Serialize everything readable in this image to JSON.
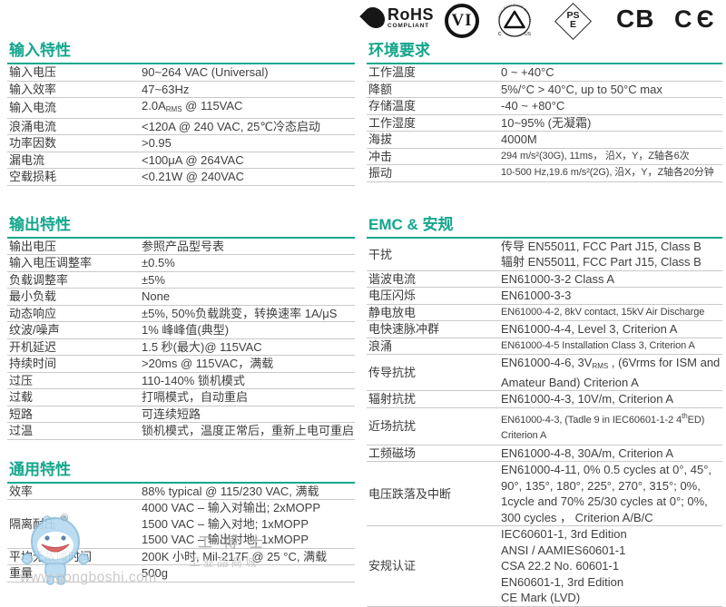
{
  "colors": {
    "accent": "#13a68c",
    "divider": "#c9c9c9",
    "text": "#3b3b3b",
    "logo_ink": "#1b1b1b",
    "watermark_blue": "#b5daf0"
  },
  "badges": {
    "rohs_line1": "RoHS",
    "rohs_line2": "COMPLIANT",
    "vi": "VI",
    "tuv_top": "TÜV Rheinland geprüft",
    "tuv_left": "c",
    "tuv_right": "US",
    "pse_line1": "PS",
    "pse_line2": "E",
    "cb": "CB",
    "ce": "CЄ"
  },
  "sections": {
    "input": {
      "title": "输入特性",
      "rows": [
        {
          "label": "输入电压",
          "value": [
            "90~264 VAC (Universal)"
          ]
        },
        {
          "label": "输入效率",
          "value": [
            "47~63Hz"
          ]
        },
        {
          "label": "输入电流",
          "value": [
            [
              "2.0A",
              {
                "sub": "RMS"
              },
              " @ 115VAC"
            ]
          ]
        },
        {
          "label": "浪涌电流",
          "value": [
            "<120A @ 240 VAC,  25℃冷态启动"
          ]
        },
        {
          "label": "功率因数",
          "value": [
            ">0.95"
          ]
        },
        {
          "label": "漏电流",
          "value": [
            "<100μA @ 264VAC"
          ]
        },
        {
          "label": "空载损耗",
          "value": [
            "<0.21W @ 240VAC"
          ]
        }
      ]
    },
    "output": {
      "title": "输出特性",
      "rows": [
        {
          "label": "输出电压",
          "value": [
            "参照产品型号表"
          ]
        },
        {
          "label": "输入电压调整率",
          "value": [
            "±0.5%"
          ]
        },
        {
          "label": "负载调整率",
          "value": [
            "±5%"
          ]
        },
        {
          "label": "最小负载",
          "value": [
            "None"
          ]
        },
        {
          "label": "动态响应",
          "value": [
            "±5%, 50%负载跳变，转换速率 1A/μS"
          ]
        },
        {
          "label": "纹波/噪声",
          "value": [
            "1% 峰峰值(典型)"
          ]
        },
        {
          "label": "开机延迟",
          "value": [
            "1.5 秒(最大)@ 115VAC"
          ]
        },
        {
          "label": "持续时间",
          "value": [
            ">20ms @ 115VAC，满载"
          ]
        },
        {
          "label": "过压",
          "value": [
            "110-140% 锁机模式"
          ]
        },
        {
          "label": "过载",
          "value": [
            "打嗝模式，自动重启"
          ]
        },
        {
          "label": "短路",
          "value": [
            "可连续短路"
          ]
        },
        {
          "label": "过温",
          "value": [
            "锁机模式，温度正常后，重新上电可重启"
          ]
        }
      ]
    },
    "general": {
      "title": "通用特性",
      "rows": [
        {
          "label": "效率",
          "value": [
            "88% typical @ 115/230 VAC, 满载"
          ]
        },
        {
          "label": "隔离耐压",
          "value": [
            "4000 VAC – 输入对输出; 2xMOPP",
            "1500 VAC – 输入对地; 1xMOPP",
            "1500 VAC – 输出对地; 1xMOPP"
          ]
        },
        {
          "label": "平均无故障时间",
          "value": [
            "200K 小时, Mil-217F @ 25 °C, 满载"
          ]
        },
        {
          "label": "重量",
          "value": [
            "500g"
          ]
        }
      ]
    },
    "environment": {
      "title": "环境要求",
      "rows": [
        {
          "label": "工作温度",
          "value": [
            "0 ~ +40°C"
          ]
        },
        {
          "label": "降额",
          "value": [
            "5%/°C > 40°C, up to 50°C max"
          ]
        },
        {
          "label": "存储温度",
          "value": [
            "-40 ~ +80°C"
          ]
        },
        {
          "label": "工作湿度",
          "value": [
            "10~95% (无凝霜)"
          ]
        },
        {
          "label": "海拔",
          "value": [
            "4000M"
          ]
        },
        {
          "label": "冲击",
          "small": true,
          "value": [
            "294 m/s²(30G), 11ms， 沿X，Y，Z轴各6次"
          ]
        },
        {
          "label": "振动",
          "small": true,
          "value": [
            "10-500 Hz,19.6 m/s²(2G), 沿X，Y，Z轴各20分钟"
          ]
        }
      ]
    },
    "emc": {
      "title": "EMC & 安规",
      "rows": [
        {
          "label": "干扰",
          "value": [
            "传导 EN55011, FCC Part J15, Class B",
            "辐射 EN55011, FCC Part J15, Class B"
          ]
        },
        {
          "label": "谐波电流",
          "value": [
            "EN61000-3-2 Class A"
          ]
        },
        {
          "label": "电压闪烁",
          "value": [
            "EN61000-3-3"
          ]
        },
        {
          "label": "静电放电",
          "small": true,
          "value": [
            "EN61000-4-2, 8kV contact, 15kV Air Discharge"
          ]
        },
        {
          "label": "电快速脉冲群",
          "value": [
            "EN61000-4-4, Level 3, Criterion A"
          ]
        },
        {
          "label": "浪涌",
          "small": true,
          "value": [
            "EN61000-4-5  Installation Class 3, Criterion A"
          ]
        },
        {
          "label": "传导抗扰",
          "value": [
            [
              "EN61000-4-6, 3V",
              {
                "sub": "RMS"
              },
              " , (6Vrms for ISM and"
            ],
            "Amateur Band) Criterion A"
          ]
        },
        {
          "label": "辐射抗扰",
          "value": [
            "EN61000-4-3,  10V/m, Criterion A"
          ]
        },
        {
          "label": "近场抗扰",
          "small": true,
          "value": [
            [
              "EN61000-4-3, (Tadle 9 in IEC60601-1-2 4",
              {
                "sup": "th"
              },
              "ED)"
            ],
            "Criterion A"
          ]
        },
        {
          "label": "工频磁场",
          "value": [
            "EN61000-4-8, 30A/m, Criterion A"
          ]
        },
        {
          "label": "电压跌落及中断",
          "value": [
            "EN61000-4-11, 0% 0.5 cycles at 0°,  45°,",
            "90°,  135°,  180°,  225°, 270°, 315°;  0%,",
            "1cycle and 70% 25/30 cycles at 0°; 0%,",
            "300 cycles ， Criterion A/B/C"
          ]
        },
        {
          "label": "安规认证",
          "value": [
            "IEC60601-1, 3rd Edition",
            "ANSI / AAMIES60601-1",
            "CSA 22.2 No. 60601-1",
            "EN60601-1, 3rd Edition",
            "CE Mark (LVD)"
          ]
        }
      ]
    }
  },
  "watermark": {
    "reg": "®",
    "brand": "工博士",
    "tagline": "工业品商城",
    "url": "www.gongboshi.com"
  }
}
